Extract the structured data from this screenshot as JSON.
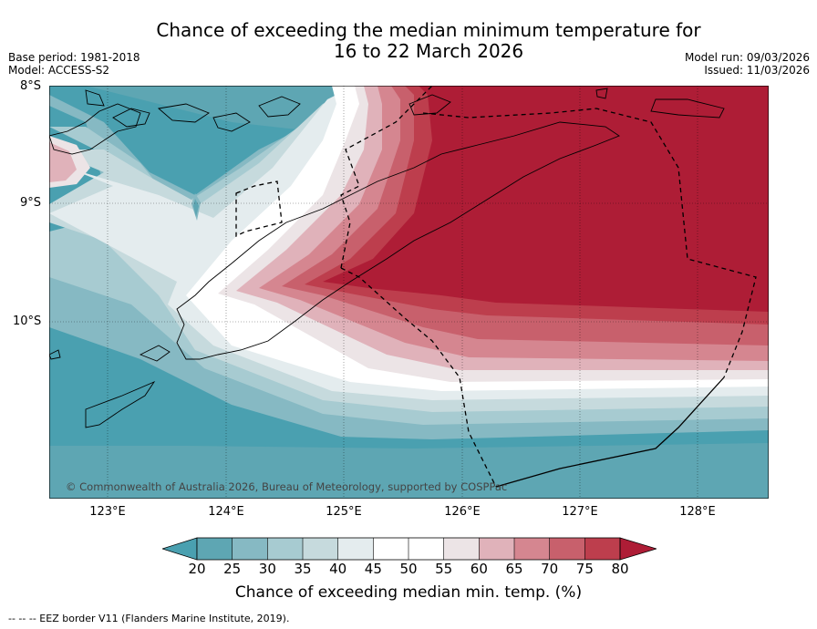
{
  "title": {
    "line1": "Chance of exceeding the median minimum temperature for",
    "line2": "16 to 22 March 2026"
  },
  "meta": {
    "base_period": "Base period: 1981-2018",
    "model": "Model: ACCESS-S2",
    "model_run": "Model run: 09/03/2026",
    "issued": "Issued: 11/03/2026"
  },
  "map": {
    "lat_labels": [
      "8°S",
      "9°S",
      "10°S"
    ],
    "lon_labels": [
      "123°E",
      "124°E",
      "125°E",
      "126°E",
      "127°E",
      "128°E"
    ],
    "copyright": "© Commonwealth of Australia 2026, Bureau of Meteorology, supported by COSPPac"
  },
  "colorbar": {
    "ticks": [
      "20",
      "25",
      "30",
      "35",
      "40",
      "45",
      "50",
      "55",
      "60",
      "65",
      "70",
      "75",
      "80"
    ],
    "colors": [
      "#5ea6b3",
      "#86b9c3",
      "#a7cbd1",
      "#c6dadd",
      "#e4ecee",
      "#ffffff",
      "#ffffff",
      "#ece4e6",
      "#e0b2ba",
      "#d58690",
      "#c8606c",
      "#bd3e4d",
      "#ae1d36"
    ],
    "under_color": "#4aa0b0",
    "over_color": "#ae1d36",
    "label": "Chance of exceeding median min. temp. (%)"
  },
  "footnote": "--  --  -- EEZ border V11 (Flanders Marine Institute, 2019).",
  "colors": {
    "deep_red": "#ae1d36",
    "deep_teal": "#4aa0b0"
  }
}
